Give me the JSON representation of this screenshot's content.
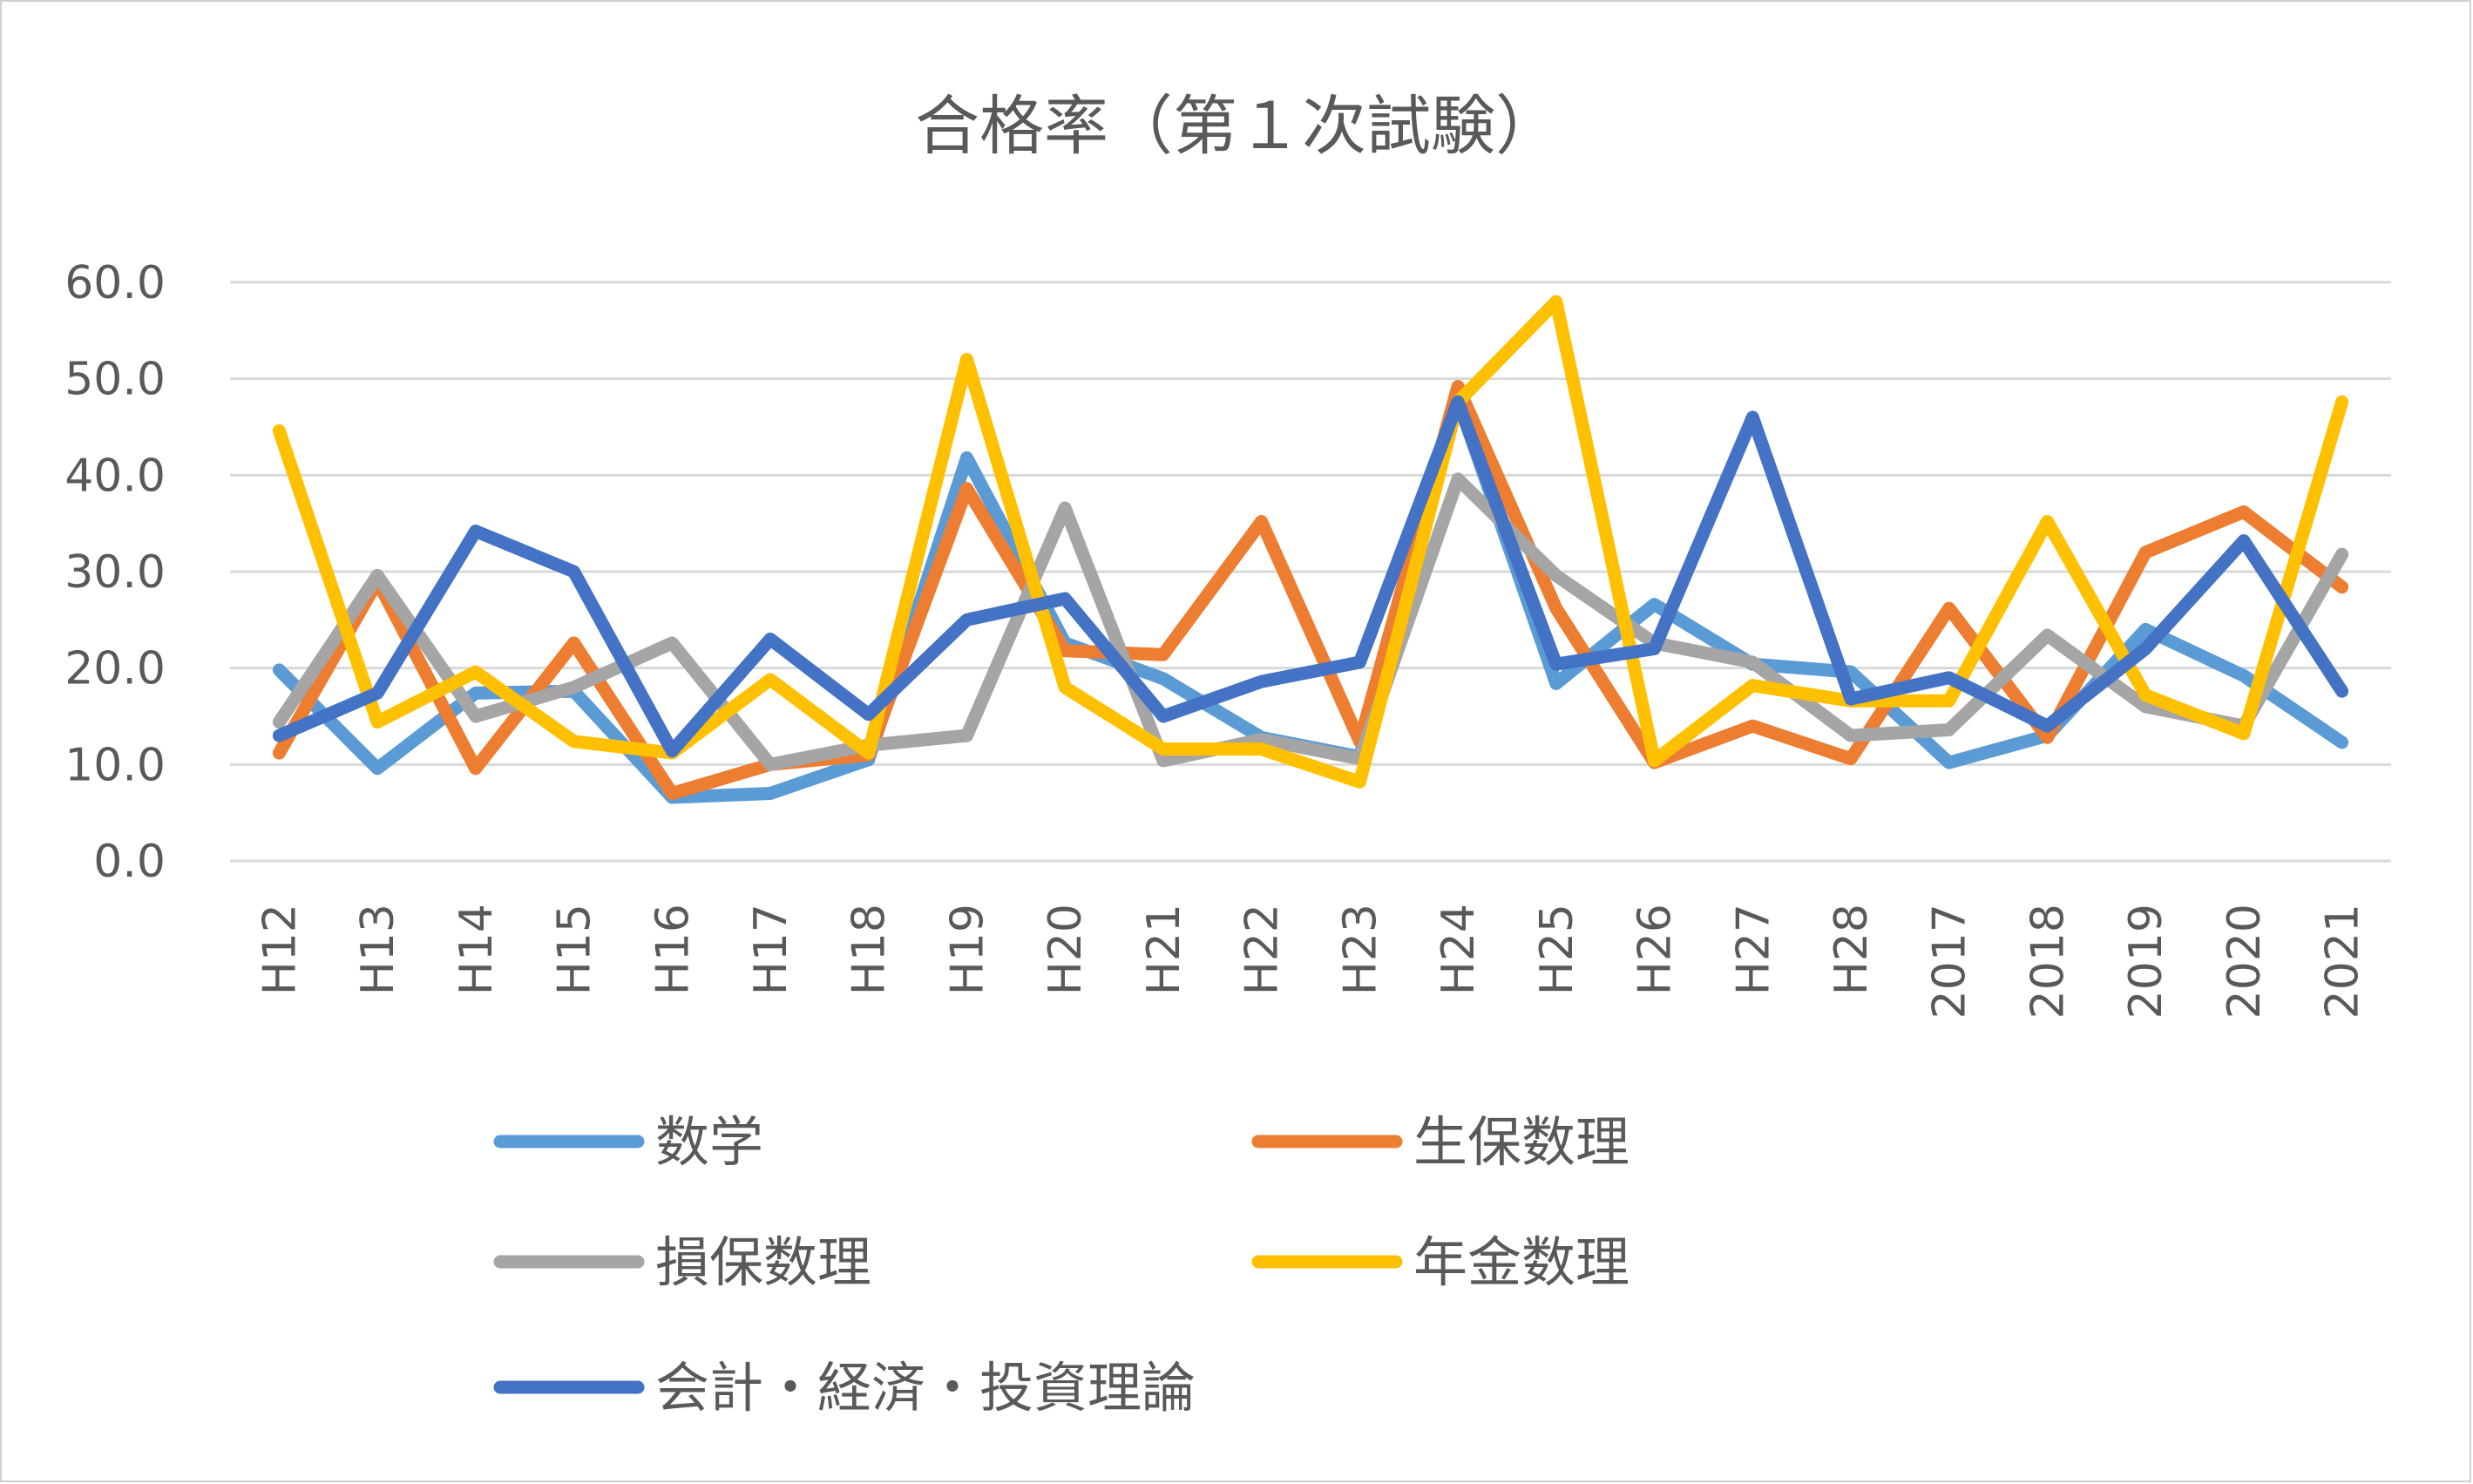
{
  "chart_data": {
    "type": "line",
    "title": "合格率（第１次試験）",
    "xlabel": "",
    "ylabel": "",
    "ylim": [
      0,
      60
    ],
    "yticks": [
      "0.0",
      "10.0",
      "20.0",
      "30.0",
      "40.0",
      "50.0",
      "60.0"
    ],
    "grid": true,
    "legend_position": "bottom",
    "categories": [
      "H12",
      "H13",
      "H14",
      "H15",
      "H16",
      "H17",
      "H18",
      "H19",
      "H20",
      "H21",
      "H22",
      "H23",
      "H24",
      "H25",
      "H26",
      "H27",
      "H28",
      "2017",
      "2018",
      "2019",
      "2020",
      "2021"
    ],
    "series": [
      {
        "name": "数学",
        "color": "#5B9BD5",
        "values": [
          19.8,
          9.6,
          17.4,
          17.6,
          6.6,
          7.0,
          10.5,
          41.8,
          22.6,
          18.9,
          12.8,
          10.8,
          47.8,
          18.4,
          26.6,
          20.4,
          19.6,
          10.2,
          13.0,
          24.0,
          19.2,
          12.3
        ]
      },
      {
        "name": "生保数理",
        "color": "#ED7D31",
        "values": [
          11.2,
          29.0,
          9.6,
          22.6,
          7.0,
          10.0,
          11.0,
          38.6,
          21.8,
          21.4,
          35.2,
          12.4,
          49.2,
          26.2,
          10.2,
          14.0,
          10.6,
          26.2,
          12.8,
          32.0,
          36.2,
          28.4
        ]
      },
      {
        "name": "損保数理",
        "color": "#A5A5A5",
        "values": [
          14.4,
          29.6,
          15.0,
          18.0,
          22.6,
          10.0,
          12.0,
          13.0,
          36.6,
          10.4,
          12.6,
          10.6,
          39.6,
          29.6,
          22.6,
          20.6,
          13.0,
          13.6,
          23.4,
          16.0,
          14.0,
          31.8
        ]
      },
      {
        "name": "年金数理",
        "color": "#FFC000",
        "values": [
          44.6,
          14.4,
          19.6,
          12.4,
          11.2,
          18.8,
          11.2,
          52.0,
          18.0,
          11.6,
          11.6,
          8.2,
          47.6,
          58.0,
          10.4,
          18.2,
          16.6,
          16.6,
          35.2,
          17.2,
          13.2,
          47.6
        ]
      },
      {
        "name": "会計・経済・投資理論",
        "color": "#4472C4",
        "values": [
          13.0,
          17.4,
          34.2,
          30.0,
          11.4,
          23.0,
          15.2,
          25.0,
          27.2,
          15.0,
          18.6,
          20.6,
          47.6,
          20.4,
          22.0,
          46.0,
          16.8,
          19.0,
          14.0,
          22.0,
          33.2,
          17.6
        ]
      }
    ]
  }
}
